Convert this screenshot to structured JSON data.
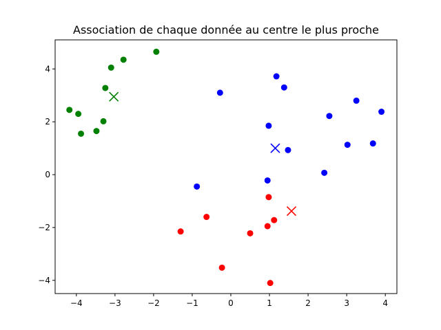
{
  "chart_data": {
    "type": "scatter",
    "title": "Association de chaque donnée au centre le plus proche",
    "xlabel": "",
    "ylabel": "",
    "xlim": [
      -4.55,
      4.3
    ],
    "ylim": [
      -4.5,
      5.1
    ],
    "xticks": [
      -4,
      -3,
      -2,
      -1,
      0,
      1,
      2,
      3,
      4
    ],
    "yticks": [
      -4,
      -2,
      0,
      2,
      4
    ],
    "grid": false,
    "series": [
      {
        "color": "#008000",
        "points": [
          {
            "x": -4.18,
            "y": 2.45
          },
          {
            "x": -3.95,
            "y": 2.3
          },
          {
            "x": -3.88,
            "y": 1.55
          },
          {
            "x": -3.48,
            "y": 1.65
          },
          {
            "x": -3.3,
            "y": 2.02
          },
          {
            "x": -3.25,
            "y": 3.28
          },
          {
            "x": -3.1,
            "y": 4.05
          },
          {
            "x": -2.78,
            "y": 4.35
          },
          {
            "x": -1.93,
            "y": 4.65
          }
        ],
        "center": {
          "x": -3.03,
          "y": 2.95
        }
      },
      {
        "color": "#0000ff",
        "points": [
          {
            "x": -0.28,
            "y": 3.1
          },
          {
            "x": 1.18,
            "y": 3.72
          },
          {
            "x": 1.38,
            "y": 3.3
          },
          {
            "x": 0.98,
            "y": 1.85
          },
          {
            "x": 1.48,
            "y": 0.93
          },
          {
            "x": 2.55,
            "y": 2.22
          },
          {
            "x": 3.25,
            "y": 2.8
          },
          {
            "x": 3.9,
            "y": 2.38
          },
          {
            "x": 3.02,
            "y": 1.13
          },
          {
            "x": 3.68,
            "y": 1.18
          },
          {
            "x": 2.42,
            "y": 0.07
          },
          {
            "x": 0.95,
            "y": -0.22
          },
          {
            "x": -0.88,
            "y": -0.45
          }
        ],
        "center": {
          "x": 1.15,
          "y": 1.0
        }
      },
      {
        "color": "#ff0000",
        "points": [
          {
            "x": 0.98,
            "y": -0.85
          },
          {
            "x": 1.12,
            "y": -1.72
          },
          {
            "x": 0.95,
            "y": -1.95
          },
          {
            "x": -0.63,
            "y": -1.6
          },
          {
            "x": -1.3,
            "y": -2.15
          },
          {
            "x": 0.5,
            "y": -2.22
          },
          {
            "x": -0.23,
            "y": -3.52
          },
          {
            "x": 1.02,
            "y": -4.1
          }
        ],
        "center": {
          "x": 1.57,
          "y": -1.38
        }
      }
    ]
  }
}
